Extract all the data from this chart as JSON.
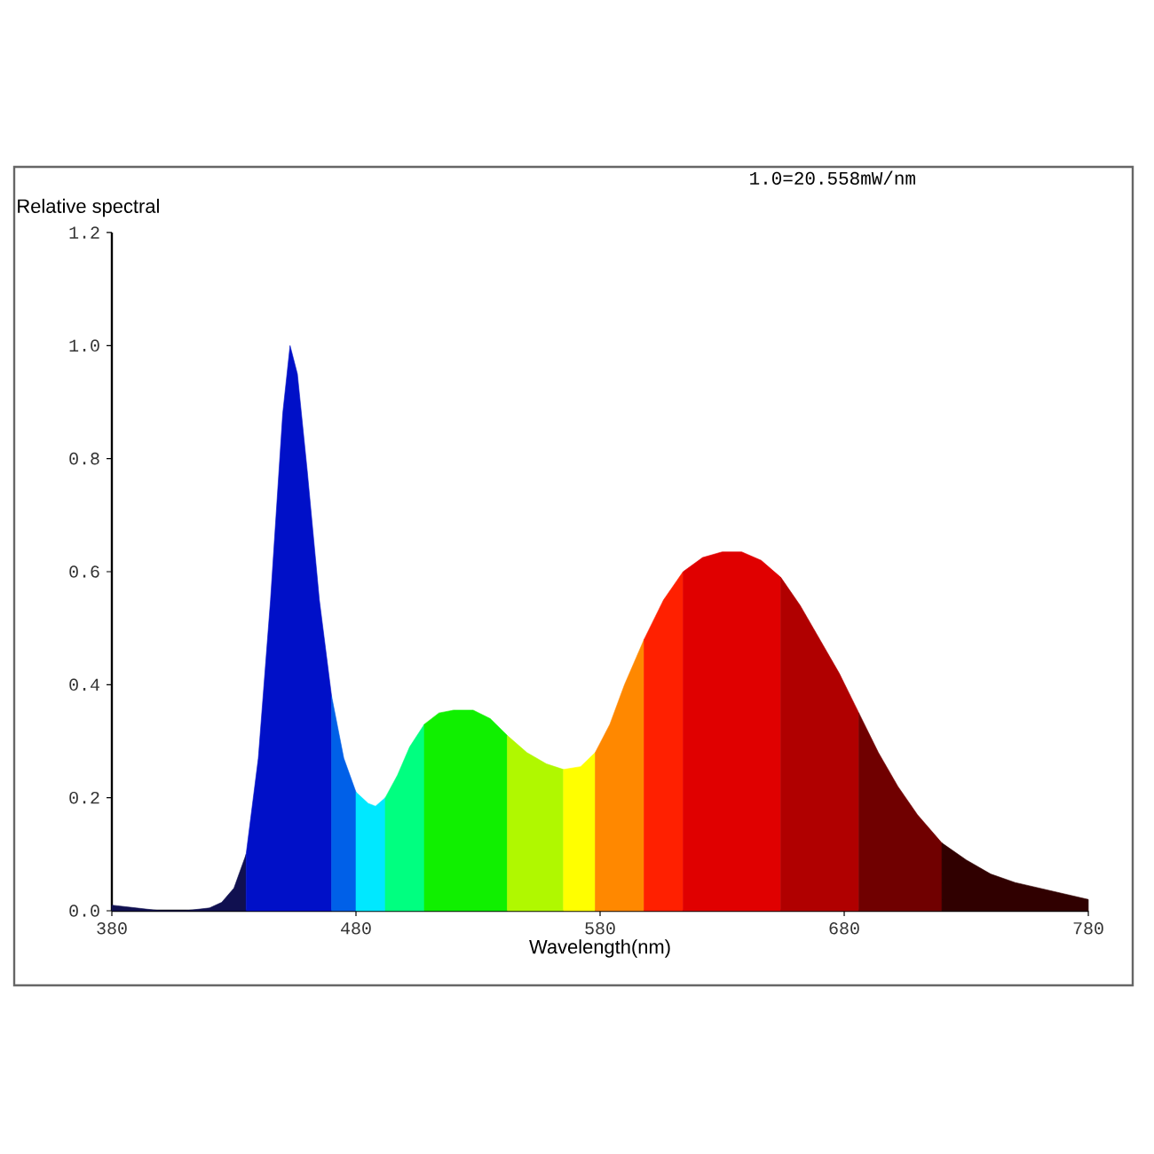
{
  "chart_data": {
    "type": "area",
    "xlabel": "Wavelength(nm)",
    "ylabel": "Relative spectral",
    "annotations": [
      "1.0=20.558mW/nm"
    ],
    "xlim": [
      380,
      780
    ],
    "xticks": [
      380,
      480,
      580,
      680,
      780
    ],
    "ylim": [
      0,
      1.2
    ],
    "yticks": [
      {
        "value": 0,
        "label": "0.0"
      },
      0.2,
      0.4,
      0.6,
      0.8,
      {
        "value": 1,
        "label": "1.0"
      },
      1.2
    ],
    "grid": false,
    "marker": "none",
    "series": [
      {
        "color": "#101050",
        "x": [
          380,
          390,
          400,
          410,
          420,
          425,
          430,
          435
        ],
        "values": [
          0.01,
          0.005,
          0,
          0,
          0.005,
          0.015,
          0.04,
          0.1
        ]
      },
      {
        "color": "#0010c8",
        "x": [
          435,
          440,
          445,
          450,
          453,
          456,
          460,
          465,
          470
        ],
        "values": [
          0.1,
          0.27,
          0.55,
          0.88,
          1.0,
          0.95,
          0.78,
          0.55,
          0.38
        ]
      },
      {
        "color": "#0060e8",
        "x": [
          470,
          475,
          480
        ],
        "values": [
          0.38,
          0.27,
          0.21
        ]
      },
      {
        "color": "#00e8ff",
        "x": [
          480,
          485,
          488,
          492
        ],
        "values": [
          0.21,
          0.19,
          0.185,
          0.2
        ]
      },
      {
        "color": "#00ff80",
        "x": [
          492,
          497,
          502,
          508
        ],
        "values": [
          0.2,
          0.24,
          0.29,
          0.33
        ]
      },
      {
        "color": "#10f000",
        "x": [
          508,
          514,
          520,
          528,
          535,
          542
        ],
        "values": [
          0.33,
          0.35,
          0.355,
          0.355,
          0.34,
          0.31
        ]
      },
      {
        "color": "#b0f800",
        "x": [
          542,
          550,
          558,
          565
        ],
        "values": [
          0.31,
          0.28,
          0.26,
          0.25
        ]
      },
      {
        "color": "#ffff00",
        "x": [
          565,
          572,
          578
        ],
        "values": [
          0.25,
          0.255,
          0.28
        ]
      },
      {
        "color": "#ff8800",
        "x": [
          578,
          584,
          590,
          598
        ],
        "values": [
          0.28,
          0.33,
          0.4,
          0.48
        ]
      },
      {
        "color": "#ff2000",
        "x": [
          598,
          606,
          614
        ],
        "values": [
          0.48,
          0.55,
          0.6
        ]
      },
      {
        "color": "#e00000",
        "x": [
          614,
          622,
          630,
          638,
          646,
          654
        ],
        "values": [
          0.6,
          0.625,
          0.635,
          0.635,
          0.62,
          0.59
        ]
      },
      {
        "color": "#b00000",
        "x": [
          654,
          662,
          670,
          678,
          686
        ],
        "values": [
          0.59,
          0.54,
          0.48,
          0.42,
          0.35
        ]
      },
      {
        "color": "#700000",
        "x": [
          686,
          694,
          702,
          710,
          720
        ],
        "values": [
          0.35,
          0.28,
          0.22,
          0.17,
          0.12
        ]
      },
      {
        "color": "#300000",
        "x": [
          720,
          730,
          740,
          750,
          760,
          770,
          780
        ],
        "values": [
          0.12,
          0.09,
          0.065,
          0.05,
          0.04,
          0.03,
          0.02
        ]
      }
    ]
  }
}
